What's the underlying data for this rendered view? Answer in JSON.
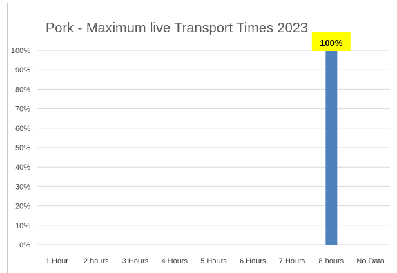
{
  "chart_data": {
    "type": "bar",
    "title": "Pork - Maximum live Transport Times 2023",
    "xlabel": "",
    "ylabel": "",
    "categories": [
      "1 Hour",
      "2 hours",
      "3 Hours",
      "4 Hours",
      "5 Hours",
      "6 Hours",
      "7 Hours",
      "8 hours",
      "No Data"
    ],
    "values": [
      0,
      0,
      0,
      0,
      0,
      0,
      0,
      100,
      0
    ],
    "y_tick_labels": [
      "0%",
      "10%",
      "20%",
      "30%",
      "40%",
      "50%",
      "60%",
      "70%",
      "80%",
      "90%",
      "100%"
    ],
    "ylim": [
      0,
      100
    ],
    "grid": true,
    "legend": "none",
    "data_labels": [
      {
        "category": "8 hours",
        "text": "100%"
      }
    ],
    "colors": {
      "bar": "#4f81bd",
      "gridline": "#d9d9d9",
      "label_highlight": "#ffff00"
    }
  }
}
